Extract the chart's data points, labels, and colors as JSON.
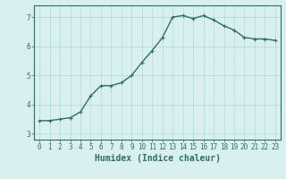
{
  "x": [
    0,
    1,
    2,
    3,
    4,
    5,
    6,
    7,
    8,
    9,
    10,
    11,
    12,
    13,
    14,
    15,
    16,
    17,
    18,
    19,
    20,
    21,
    22,
    23
  ],
  "y": [
    3.45,
    3.45,
    3.5,
    3.55,
    3.75,
    4.3,
    4.65,
    4.65,
    4.75,
    5.0,
    5.45,
    5.85,
    6.3,
    7.0,
    7.05,
    6.95,
    7.05,
    6.9,
    6.7,
    6.55,
    6.3,
    6.25,
    6.25,
    6.2
  ],
  "line_color": "#2e6e65",
  "bg_color": "#d8f0f0",
  "grid_color": "#b0d8d8",
  "xlabel": "Humidex (Indice chaleur)",
  "ylim": [
    2.8,
    7.4
  ],
  "xlim": [
    -0.5,
    23.5
  ],
  "yticks": [
    3,
    4,
    5,
    6,
    7
  ],
  "xticks": [
    0,
    1,
    2,
    3,
    4,
    5,
    6,
    7,
    8,
    9,
    10,
    11,
    12,
    13,
    14,
    15,
    16,
    17,
    18,
    19,
    20,
    21,
    22,
    23
  ],
  "tick_fontsize": 5.5,
  "xlabel_fontsize": 7,
  "marker_size": 2.5,
  "line_width": 1.0
}
